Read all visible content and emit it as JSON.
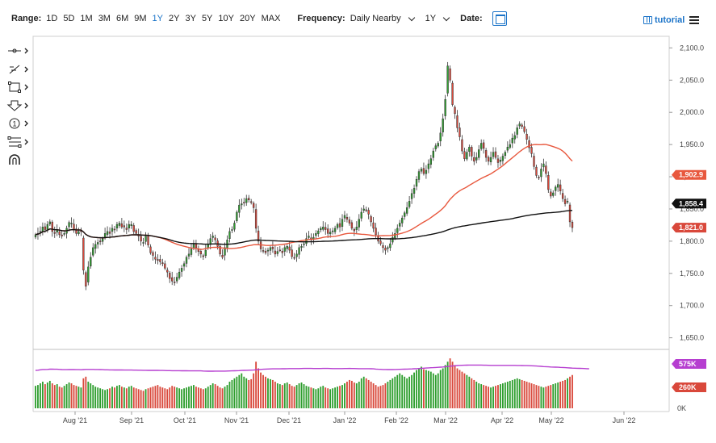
{
  "toolbar": {
    "range_label": "Range:",
    "ranges": [
      "1D",
      "5D",
      "1M",
      "3M",
      "6M",
      "9M",
      "1Y",
      "2Y",
      "3Y",
      "5Y",
      "10Y",
      "20Y",
      "MAX"
    ],
    "active_range": "1Y",
    "frequency_label": "Frequency:",
    "frequency_value": "Daily Nearby",
    "period_value": "1Y",
    "date_label": "Date:",
    "tutorial_label": "tutorial"
  },
  "colors": {
    "up": "#2e9e2e",
    "down": "#d9483b",
    "ma_fast": "#e8583e",
    "ma_slow": "#111111",
    "volume_ma": "#b63ed0",
    "active_range": "#1a73c8"
  },
  "icons": [
    "crosshair-icon",
    "trendline-icon",
    "rectangle-icon",
    "arrow-down-icon",
    "circle-one-icon",
    "fibonacci-icon",
    "magnet-icon"
  ],
  "chart_data": {
    "type": "candlestick",
    "price_axis": {
      "ticks": [
        "2,100.0",
        "2,050.0",
        "2,000.0",
        "1,950.0",
        "1,900.0",
        "1,850.0",
        "1,800.0",
        "1,750.0",
        "1,700.0",
        "1,650.0"
      ],
      "range": [
        1632,
        2118
      ]
    },
    "volume_axis": {
      "ticks": [
        "0K"
      ],
      "range": [
        0,
        640
      ]
    },
    "x_ticks": [
      "Aug '21",
      "Sep '21",
      "Oct '21",
      "Nov '21",
      "Dec '21",
      "Jan '22",
      "Feb '22",
      "Mar '22",
      "Apr '22",
      "May '22",
      "Jun '22"
    ],
    "tags": [
      {
        "text": "1,902.9",
        "value": 1902.9,
        "color": "#e8583e",
        "axis": "price"
      },
      {
        "text": "1,858.4",
        "value": 1858.4,
        "color": "#111111",
        "axis": "price"
      },
      {
        "text": "1,821.0",
        "value": 1821.0,
        "color": "#d9483b",
        "axis": "price"
      },
      {
        "text": "575K",
        "value": 575,
        "color": "#b63ed0",
        "axis": "volume"
      },
      {
        "text": "260K",
        "value": 260,
        "color": "#d9483b",
        "axis": "volume"
      }
    ],
    "price_path": [
      1810,
      1812,
      1815,
      1822,
      1818,
      1826,
      1830,
      1815,
      1812,
      1818,
      1810,
      1808,
      1812,
      1820,
      1829,
      1828,
      1818,
      1812,
      1815,
      1816,
      1755,
      1730,
      1760,
      1775,
      1790,
      1795,
      1798,
      1800,
      1804,
      1812,
      1815,
      1812,
      1820,
      1818,
      1826,
      1828,
      1822,
      1822,
      1818,
      1826,
      1826,
      1815,
      1812,
      1808,
      1800,
      1798,
      1808,
      1794,
      1782,
      1778,
      1772,
      1770,
      1768,
      1765,
      1758,
      1752,
      1742,
      1738,
      1736,
      1744,
      1752,
      1758,
      1765,
      1775,
      1780,
      1788,
      1795,
      1790,
      1784,
      1780,
      1776,
      1786,
      1795,
      1804,
      1808,
      1802,
      1792,
      1780,
      1775,
      1790,
      1802,
      1815,
      1818,
      1828,
      1845,
      1856,
      1858,
      1860,
      1866,
      1864,
      1860,
      1852,
      1820,
      1800,
      1788,
      1785,
      1782,
      1786,
      1790,
      1788,
      1780,
      1784,
      1786,
      1782,
      1790,
      1792,
      1786,
      1776,
      1774,
      1780,
      1790,
      1792,
      1796,
      1804,
      1808,
      1802,
      1806,
      1812,
      1816,
      1820,
      1822,
      1818,
      1812,
      1814,
      1816,
      1820,
      1826,
      1822,
      1834,
      1840,
      1834,
      1828,
      1820,
      1816,
      1822,
      1834,
      1845,
      1850,
      1848,
      1842,
      1830,
      1820,
      1810,
      1800,
      1796,
      1790,
      1786,
      1790,
      1796,
      1806,
      1812,
      1820,
      1828,
      1836,
      1844,
      1852,
      1862,
      1874,
      1882,
      1896,
      1908,
      1912,
      1905,
      1910,
      1920,
      1928,
      1940,
      1948,
      1952,
      1968,
      1990,
      2020,
      2072,
      2050,
      2012,
      1998,
      1976,
      1962,
      1940,
      1928,
      1938,
      1946,
      1932,
      1924,
      1930,
      1942,
      1952,
      1944,
      1930,
      1924,
      1930,
      1938,
      1930,
      1922,
      1926,
      1932,
      1938,
      1946,
      1950,
      1960,
      1964,
      1976,
      1982,
      1978,
      1970,
      1958,
      1945,
      1936,
      1916,
      1902,
      1898,
      1912,
      1920,
      1905,
      1880,
      1870,
      1875,
      1884,
      1888,
      1878,
      1866,
      1858,
      1862,
      1830,
      1821
    ],
    "volume_path": [
      270,
      280,
      300,
      320,
      290,
      310,
      330,
      300,
      280,
      290,
      260,
      250,
      270,
      290,
      310,
      300,
      280,
      270,
      260,
      250,
      360,
      380,
      320,
      300,
      280,
      260,
      250,
      240,
      230,
      220,
      230,
      240,
      260,
      250,
      270,
      280,
      260,
      250,
      240,
      260,
      270,
      250,
      240,
      230,
      220,
      210,
      230,
      240,
      250,
      260,
      270,
      280,
      260,
      250,
      240,
      230,
      250,
      270,
      260,
      250,
      240,
      230,
      240,
      250,
      260,
      270,
      280,
      260,
      250,
      240,
      230,
      240,
      260,
      280,
      300,
      290,
      270,
      250,
      240,
      260,
      280,
      320,
      340,
      360,
      380,
      400,
      420,
      380,
      360,
      340,
      350,
      420,
      560,
      480,
      430,
      400,
      380,
      360,
      350,
      340,
      320,
      300,
      290,
      280,
      300,
      310,
      290,
      270,
      260,
      280,
      300,
      310,
      290,
      270,
      260,
      250,
      240,
      230,
      240,
      260,
      270,
      250,
      240,
      230,
      240,
      250,
      260,
      270,
      280,
      300,
      320,
      340,
      330,
      310,
      300,
      320,
      360,
      380,
      360,
      340,
      320,
      300,
      280,
      260,
      270,
      280,
      300,
      320,
      340,
      360,
      380,
      400,
      420,
      400,
      380,
      360,
      380,
      400,
      430,
      460,
      480,
      500,
      470,
      460,
      450,
      440,
      420,
      400,
      420,
      460,
      480,
      520,
      560,
      600,
      560,
      520,
      480,
      460,
      440,
      420,
      400,
      380,
      360,
      340,
      320,
      300,
      290,
      280,
      270,
      260,
      250,
      260,
      270,
      280,
      290,
      300,
      310,
      320,
      330,
      340,
      350,
      360,
      350,
      340,
      330,
      320,
      310,
      300,
      290,
      280,
      270,
      260,
      250,
      260,
      270,
      280,
      290,
      300,
      310,
      320,
      330,
      340,
      360,
      380,
      400,
      420,
      380,
      360,
      320,
      300,
      270,
      260
    ],
    "ma_fast_note": "",
    "ma_slow_note": ""
  }
}
